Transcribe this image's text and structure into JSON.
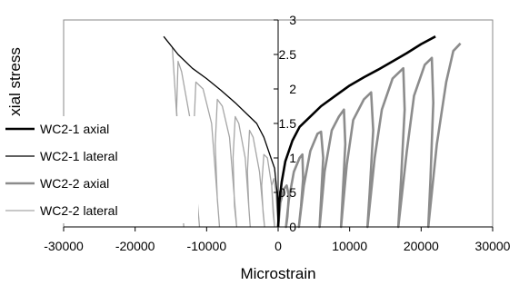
{
  "chart_data": {
    "type": "line",
    "title": "",
    "xlabel": "Microstrain",
    "ylabel": "Normalised axial stress",
    "xlim": [
      -30000,
      30000
    ],
    "ylim": [
      0,
      3
    ],
    "xticks": [
      -30000,
      -20000,
      -10000,
      0,
      10000,
      20000,
      30000
    ],
    "yticks": [
      0,
      0.5,
      1,
      1.5,
      2,
      2.5,
      3
    ],
    "xtick_labels": [
      "-30000",
      "-20000",
      "-10000",
      "0",
      "10000",
      "20000",
      "30000"
    ],
    "ytick_labels": [
      "0",
      "0.5",
      "1",
      "1.5",
      "2",
      "2.5",
      "3"
    ],
    "grid": false,
    "legend_position": "left",
    "series": [
      {
        "name": "WC2-1 axial",
        "color": "#000000",
        "style": "thick",
        "points": [
          [
            0,
            0
          ],
          [
            150,
            0.35
          ],
          [
            500,
            0.65
          ],
          [
            1000,
            0.95
          ],
          [
            2000,
            1.25
          ],
          [
            3000,
            1.45
          ],
          [
            4000,
            1.55
          ],
          [
            6000,
            1.75
          ],
          [
            8000,
            1.9
          ],
          [
            10000,
            2.05
          ],
          [
            12000,
            2.17
          ],
          [
            14000,
            2.28
          ],
          [
            16000,
            2.4
          ],
          [
            18000,
            2.52
          ],
          [
            20000,
            2.65
          ],
          [
            22000,
            2.76
          ]
        ]
      },
      {
        "name": "WC2-1 lateral",
        "color": "#000000",
        "style": "thin",
        "points": [
          [
            0,
            0
          ],
          [
            -150,
            0.5
          ],
          [
            -500,
            0.85
          ],
          [
            -1000,
            1.0
          ],
          [
            -2000,
            1.3
          ],
          [
            -3000,
            1.5
          ],
          [
            -4000,
            1.6
          ],
          [
            -6000,
            1.8
          ],
          [
            -8000,
            1.98
          ],
          [
            -10000,
            2.15
          ],
          [
            -12000,
            2.3
          ],
          [
            -14000,
            2.5
          ],
          [
            -16000,
            2.76
          ]
        ]
      },
      {
        "name": "WC2-2 axial",
        "color": "#8c8c8c",
        "style": "thick",
        "points": [
          [
            0,
            0
          ],
          [
            300,
            0.35
          ],
          [
            800,
            0.55
          ],
          [
            1200,
            0.6
          ],
          [
            1500,
            0.45
          ],
          [
            1300,
            0.15
          ],
          [
            1100,
            0
          ],
          [
            1500,
            0.4
          ],
          [
            2200,
            0.8
          ],
          [
            3000,
            1.0
          ],
          [
            3400,
            1.05
          ],
          [
            3500,
            0.7
          ],
          [
            3200,
            0.3
          ],
          [
            2900,
            0
          ],
          [
            3600,
            0.6
          ],
          [
            4500,
            1.1
          ],
          [
            5500,
            1.35
          ],
          [
            6000,
            1.38
          ],
          [
            6300,
            1.0
          ],
          [
            6000,
            0.4
          ],
          [
            5800,
            0
          ],
          [
            6500,
            0.8
          ],
          [
            7500,
            1.4
          ],
          [
            8500,
            1.6
          ],
          [
            9200,
            1.7
          ],
          [
            9400,
            1.2
          ],
          [
            9000,
            0.4
          ],
          [
            8800,
            0
          ],
          [
            9600,
            0.9
          ],
          [
            10500,
            1.55
          ],
          [
            12000,
            1.85
          ],
          [
            13000,
            1.95
          ],
          [
            13300,
            1.4
          ],
          [
            12800,
            0.5
          ],
          [
            12500,
            0
          ],
          [
            13500,
            1.0
          ],
          [
            14500,
            1.7
          ],
          [
            16000,
            2.15
          ],
          [
            17500,
            2.3
          ],
          [
            17700,
            1.7
          ],
          [
            17200,
            0.7
          ],
          [
            16800,
            0
          ],
          [
            18000,
            1.1
          ],
          [
            19000,
            1.9
          ],
          [
            20500,
            2.35
          ],
          [
            21500,
            2.45
          ],
          [
            21700,
            1.8
          ],
          [
            21300,
            0.7
          ],
          [
            21000,
            0
          ],
          [
            22200,
            1.2
          ],
          [
            23500,
            2.1
          ],
          [
            24500,
            2.55
          ],
          [
            25500,
            2.66
          ]
        ]
      },
      {
        "name": "WC2-2 lateral",
        "color": "#a6a6a6",
        "style": "thin",
        "points": [
          [
            0,
            0
          ],
          [
            -300,
            0.5
          ],
          [
            -600,
            0.7
          ],
          [
            -900,
            0.6
          ],
          [
            -700,
            0.2
          ],
          [
            -500,
            0
          ],
          [
            -900,
            0.6
          ],
          [
            -1500,
            1.0
          ],
          [
            -2000,
            1.05
          ],
          [
            -2300,
            0.6
          ],
          [
            -2100,
            0.2
          ],
          [
            -1900,
            0
          ],
          [
            -2600,
            0.8
          ],
          [
            -3500,
            1.3
          ],
          [
            -4000,
            1.4
          ],
          [
            -4300,
            0.8
          ],
          [
            -4100,
            0.3
          ],
          [
            -3900,
            0
          ],
          [
            -4600,
            1.0
          ],
          [
            -5500,
            1.5
          ],
          [
            -6000,
            1.6
          ],
          [
            -6300,
            1.0
          ],
          [
            -6100,
            0.3
          ],
          [
            -5800,
            0
          ],
          [
            -6800,
            1.3
          ],
          [
            -7800,
            1.75
          ],
          [
            -8500,
            1.85
          ],
          [
            -8800,
            1.2
          ],
          [
            -8500,
            0.4
          ],
          [
            -8200,
            0
          ],
          [
            -9300,
            1.5
          ],
          [
            -10500,
            2.0
          ],
          [
            -11500,
            2.1
          ],
          [
            -11800,
            1.4
          ],
          [
            -11400,
            0.5
          ],
          [
            -11000,
            0
          ],
          [
            -12200,
            1.5
          ],
          [
            -13500,
            2.25
          ],
          [
            -14000,
            2.4
          ],
          [
            -14200,
            1.7
          ],
          [
            -13700,
            0.7
          ],
          [
            -13200,
            0
          ],
          [
            -14300,
            1.8
          ],
          [
            -14800,
            2.6
          ]
        ]
      }
    ]
  }
}
